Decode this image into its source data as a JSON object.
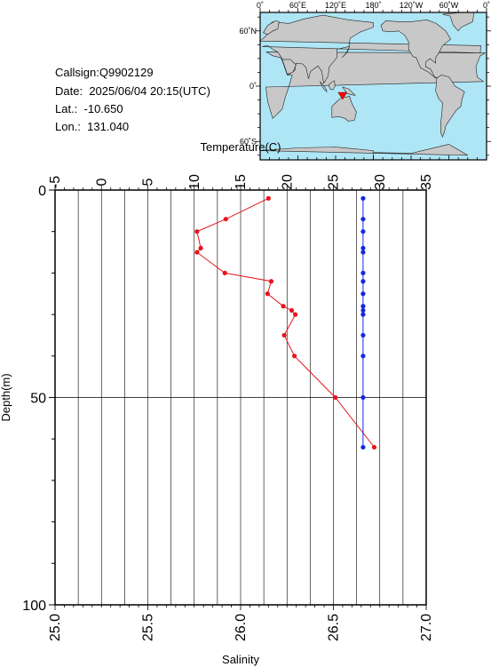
{
  "station": {
    "callsign_label": "Callsign:",
    "callsign": "Q9902129",
    "date_label": "Date:",
    "date": "2025/06/04 20:15(UTC)",
    "lat_label": "Lat.:",
    "lat": "-10.650",
    "lon_label": "Lon.:",
    "lon": "131.040"
  },
  "map": {
    "top_labels": [
      "0˚",
      "60˚E",
      "120˚E",
      "180˚",
      "120˚W",
      "60˚W",
      "0˚"
    ],
    "lat_labels": [
      "60˚N",
      "0˚",
      "60˚S"
    ],
    "ocean_color": "#aee6f6",
    "land_color": "#c8c8c8",
    "marker": {
      "lat": -10.65,
      "lon": 131.04,
      "color": "#ff0000"
    }
  },
  "chart_data": {
    "type": "line",
    "ylabel": "Depth(m)",
    "ylim": [
      100,
      0
    ],
    "yticks": [
      0,
      50,
      100
    ],
    "top_axis": {
      "label": "Temperature(C)",
      "range": [
        -5,
        35
      ],
      "ticks": [
        -5,
        0,
        5,
        10,
        15,
        20,
        25,
        30,
        35
      ]
    },
    "bottom_axis": {
      "label": "Salinity",
      "range": [
        25.0,
        27.0
      ],
      "ticks": [
        "25.0",
        "25.5",
        "26.0",
        "26.5",
        "27.0"
      ]
    },
    "grid": true,
    "series": [
      {
        "axis": "temperature",
        "color": "#e8141c",
        "points": [
          [
            18.0,
            2
          ],
          [
            13.4,
            7
          ],
          [
            10.3,
            10
          ],
          [
            10.7,
            14
          ],
          [
            10.3,
            15
          ],
          [
            13.3,
            20
          ],
          [
            18.3,
            22
          ],
          [
            17.9,
            25
          ],
          [
            19.6,
            28
          ],
          [
            20.5,
            29
          ],
          [
            20.9,
            30
          ],
          [
            19.7,
            35
          ],
          [
            20.8,
            40
          ],
          [
            25.2,
            50
          ],
          [
            29.4,
            62
          ]
        ]
      },
      {
        "axis": "salinity",
        "color": "#1428e0",
        "points": [
          [
            26.66,
            2
          ],
          [
            26.66,
            7
          ],
          [
            26.66,
            10
          ],
          [
            26.66,
            14
          ],
          [
            26.66,
            15
          ],
          [
            26.66,
            20
          ],
          [
            26.66,
            22
          ],
          [
            26.66,
            25
          ],
          [
            26.66,
            28
          ],
          [
            26.66,
            29
          ],
          [
            26.66,
            30
          ],
          [
            26.66,
            35
          ],
          [
            26.66,
            40
          ],
          [
            26.66,
            50
          ],
          [
            26.66,
            62
          ]
        ]
      }
    ]
  }
}
